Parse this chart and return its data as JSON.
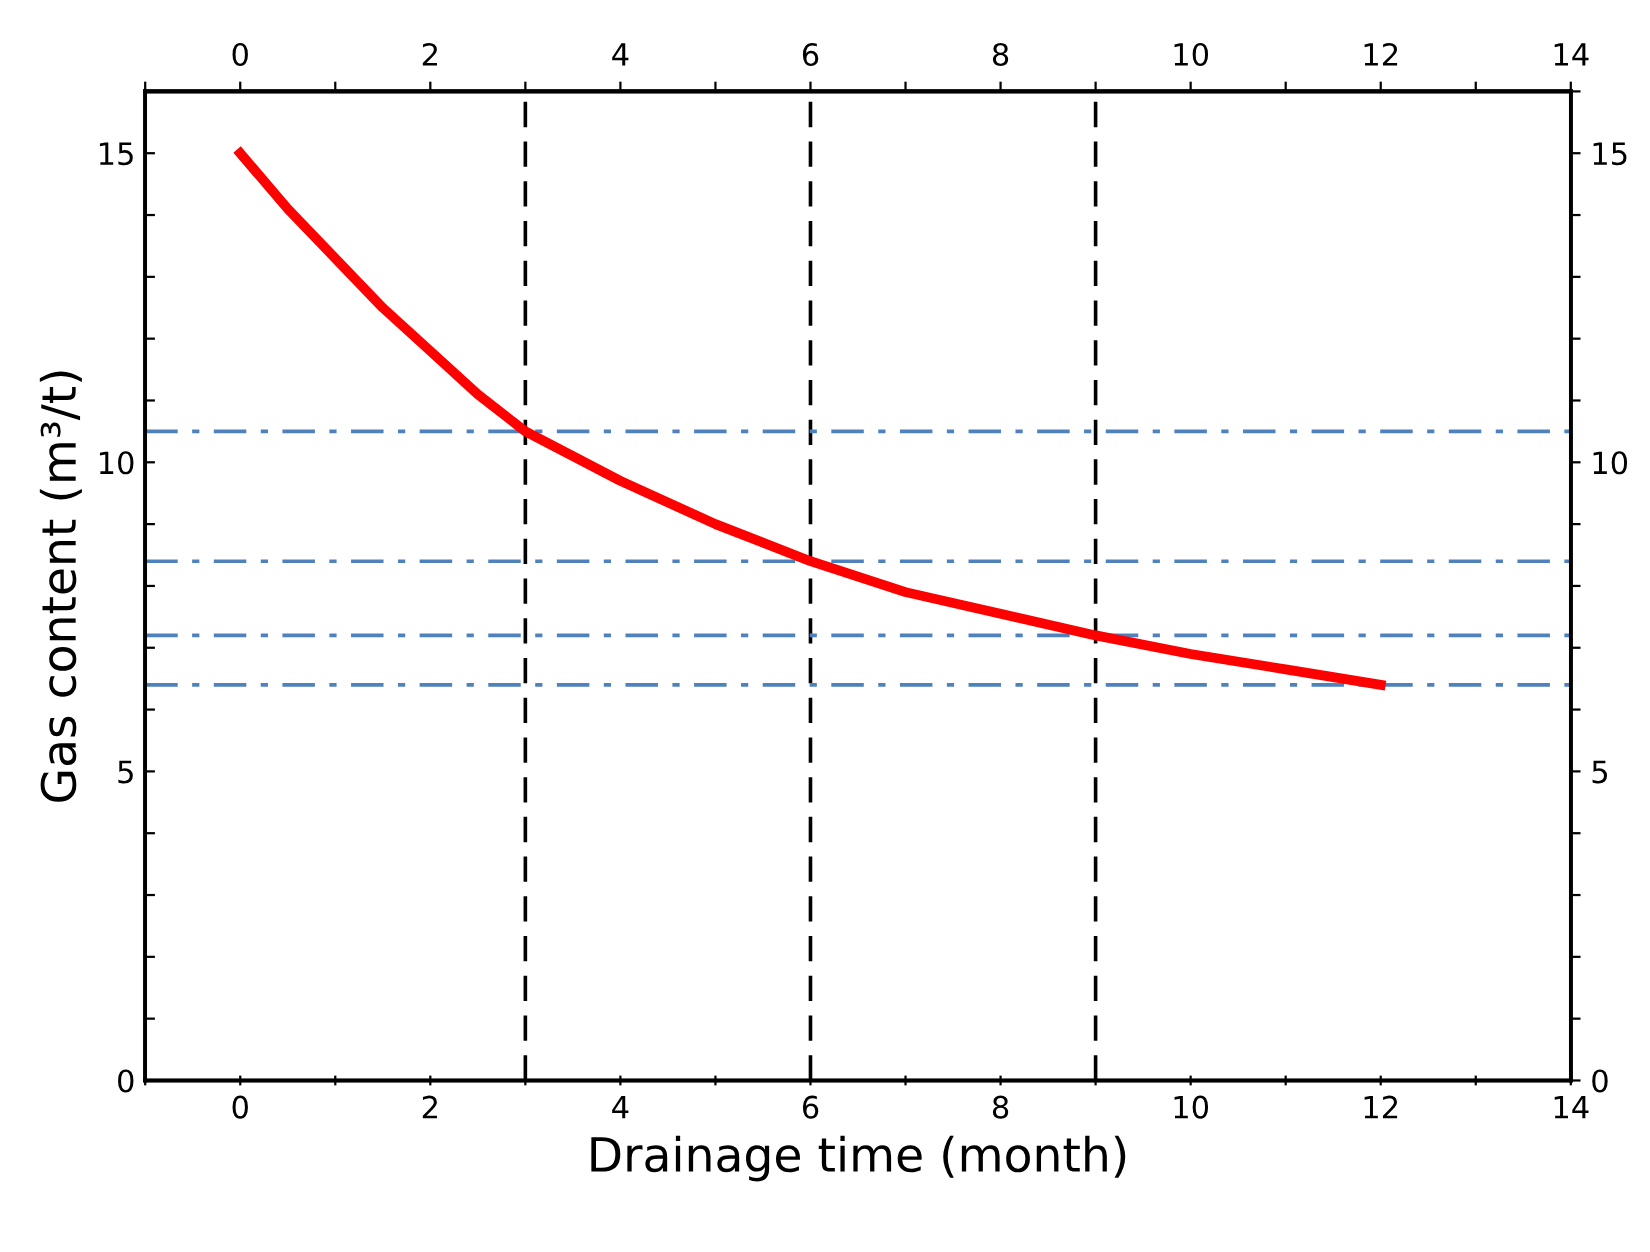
{
  "chart_data": {
    "type": "line",
    "xlabel": "Drainage time (month)",
    "ylabel": "Gas content (m³/t)",
    "x": [
      0,
      0.5,
      1,
      1.5,
      2,
      2.5,
      3,
      3.5,
      4,
      5,
      6,
      7,
      8,
      9,
      10,
      11,
      12
    ],
    "series": [
      {
        "color": "#ff0000",
        "values": [
          15,
          14.1,
          13.3,
          12.5,
          11.8,
          11.1,
          10.5,
          10.1,
          9.7,
          9.0,
          8.4,
          7.9,
          7.55,
          7.2,
          6.9,
          6.65,
          6.4
        ]
      }
    ],
    "xlim": [
      -1,
      14
    ],
    "ylim": [
      0,
      16
    ],
    "xticks": [
      {
        "value": -1,
        "label": null
      },
      0,
      {
        "value": 1,
        "label": null
      },
      2,
      {
        "value": 3,
        "label": null
      },
      4,
      {
        "value": 5,
        "label": null
      },
      6,
      {
        "value": 7,
        "label": null
      },
      8,
      {
        "value": 9,
        "label": null
      },
      10,
      {
        "value": 11,
        "label": null
      },
      12,
      {
        "value": 13,
        "label": null
      },
      14
    ],
    "x2lim": [
      -1,
      14
    ],
    "x2ticks": [
      {
        "value": -1,
        "label": null
      },
      0,
      {
        "value": 1,
        "label": null
      },
      2,
      {
        "value": 3,
        "label": null
      },
      4,
      {
        "value": 5,
        "label": null
      },
      6,
      {
        "value": 7,
        "label": null
      },
      8,
      {
        "value": 9,
        "label": null
      },
      10,
      {
        "value": 11,
        "label": null
      },
      12,
      {
        "value": 13,
        "label": null
      },
      14
    ],
    "yticks": [
      0,
      {
        "value": 1,
        "label": null
      },
      {
        "value": 2,
        "label": null
      },
      {
        "value": 3,
        "label": null
      },
      {
        "value": 4,
        "label": null
      },
      5,
      {
        "value": 6,
        "label": null
      },
      {
        "value": 7,
        "label": null
      },
      {
        "value": 8,
        "label": null
      },
      {
        "value": 9,
        "label": null
      },
      10,
      {
        "value": 11,
        "label": null
      },
      {
        "value": 12,
        "label": null
      },
      {
        "value": 13,
        "label": null
      },
      {
        "value": 14,
        "label": null
      },
      15,
      {
        "value": 16,
        "label": null
      }
    ],
    "y2lim": [
      0,
      16
    ],
    "y2ticks": [
      0,
      {
        "value": 1,
        "label": null
      },
      {
        "value": 2,
        "label": null
      },
      {
        "value": 3,
        "label": null
      },
      {
        "value": 4,
        "label": null
      },
      5,
      {
        "value": 6,
        "label": null
      },
      {
        "value": 7,
        "label": null
      },
      {
        "value": 8,
        "label": null
      },
      {
        "value": 9,
        "label": null
      },
      10,
      {
        "value": 11,
        "label": null
      },
      {
        "value": 12,
        "label": null
      },
      {
        "value": 13,
        "label": null
      },
      {
        "value": 14,
        "label": null
      },
      15,
      {
        "value": 16,
        "label": null
      }
    ],
    "ref_lines": [
      {
        "axis": "x",
        "value": 3,
        "color": "#000000",
        "line_style": "dashed"
      },
      {
        "axis": "x",
        "value": 6,
        "color": "#000000",
        "line_style": "dashed"
      },
      {
        "axis": "x",
        "value": 9,
        "color": "#000000",
        "line_style": "dashed"
      },
      {
        "axis": "y",
        "value": 10.5,
        "color": "#4f81bd",
        "line_style": "dashdot"
      },
      {
        "axis": "y",
        "value": 8.4,
        "color": "#4f81bd",
        "line_style": "dashdot"
      },
      {
        "axis": "y",
        "value": 7.2,
        "color": "#4f81bd",
        "line_style": "dashdot"
      },
      {
        "axis": "y",
        "value": 6.4,
        "color": "#4f81bd",
        "line_style": "dashdot"
      }
    ],
    "grid": false,
    "marker": "none",
    "line_style": "solid"
  }
}
